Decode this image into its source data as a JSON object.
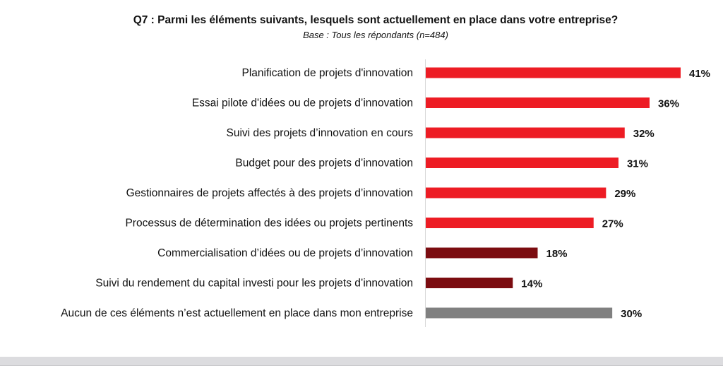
{
  "chart_data": {
    "type": "bar",
    "orientation": "horizontal",
    "title": "Q7 : Parmi les éléments suivants, lesquels sont actuellement en place dans votre entreprise?",
    "subtitle": "Base : Tous les répondants (n=484)",
    "categories": [
      "Planification de projets d'innovation",
      "Essai pilote d'idées ou de projets d’innovation",
      "Suivi des projets d’innovation en cours",
      "Budget pour des projets d’innovation",
      "Gestionnaires de projets affectés à des projets d’innovation",
      "Processus de détermination des idées ou projets pertinents",
      "Commercialisation d’idées ou de projets d’innovation",
      "Suivi du rendement du capital investi pour les projets d’innovation",
      "Aucun de ces éléments n’est actuellement en place dans mon entreprise"
    ],
    "values": [
      41,
      36,
      32,
      31,
      29,
      27,
      18,
      14,
      30
    ],
    "value_labels": [
      "41%",
      "36%",
      "32%",
      "31%",
      "29%",
      "27%",
      "18%",
      "14%",
      "30%"
    ],
    "colors": [
      "#ED1C24",
      "#ED1C24",
      "#ED1C24",
      "#ED1C24",
      "#ED1C24",
      "#ED1C24",
      "#7B0C10",
      "#7B0C10",
      "#808080"
    ],
    "unit": "%",
    "xlim": [
      0,
      41
    ],
    "grid": false,
    "legend": "none"
  }
}
